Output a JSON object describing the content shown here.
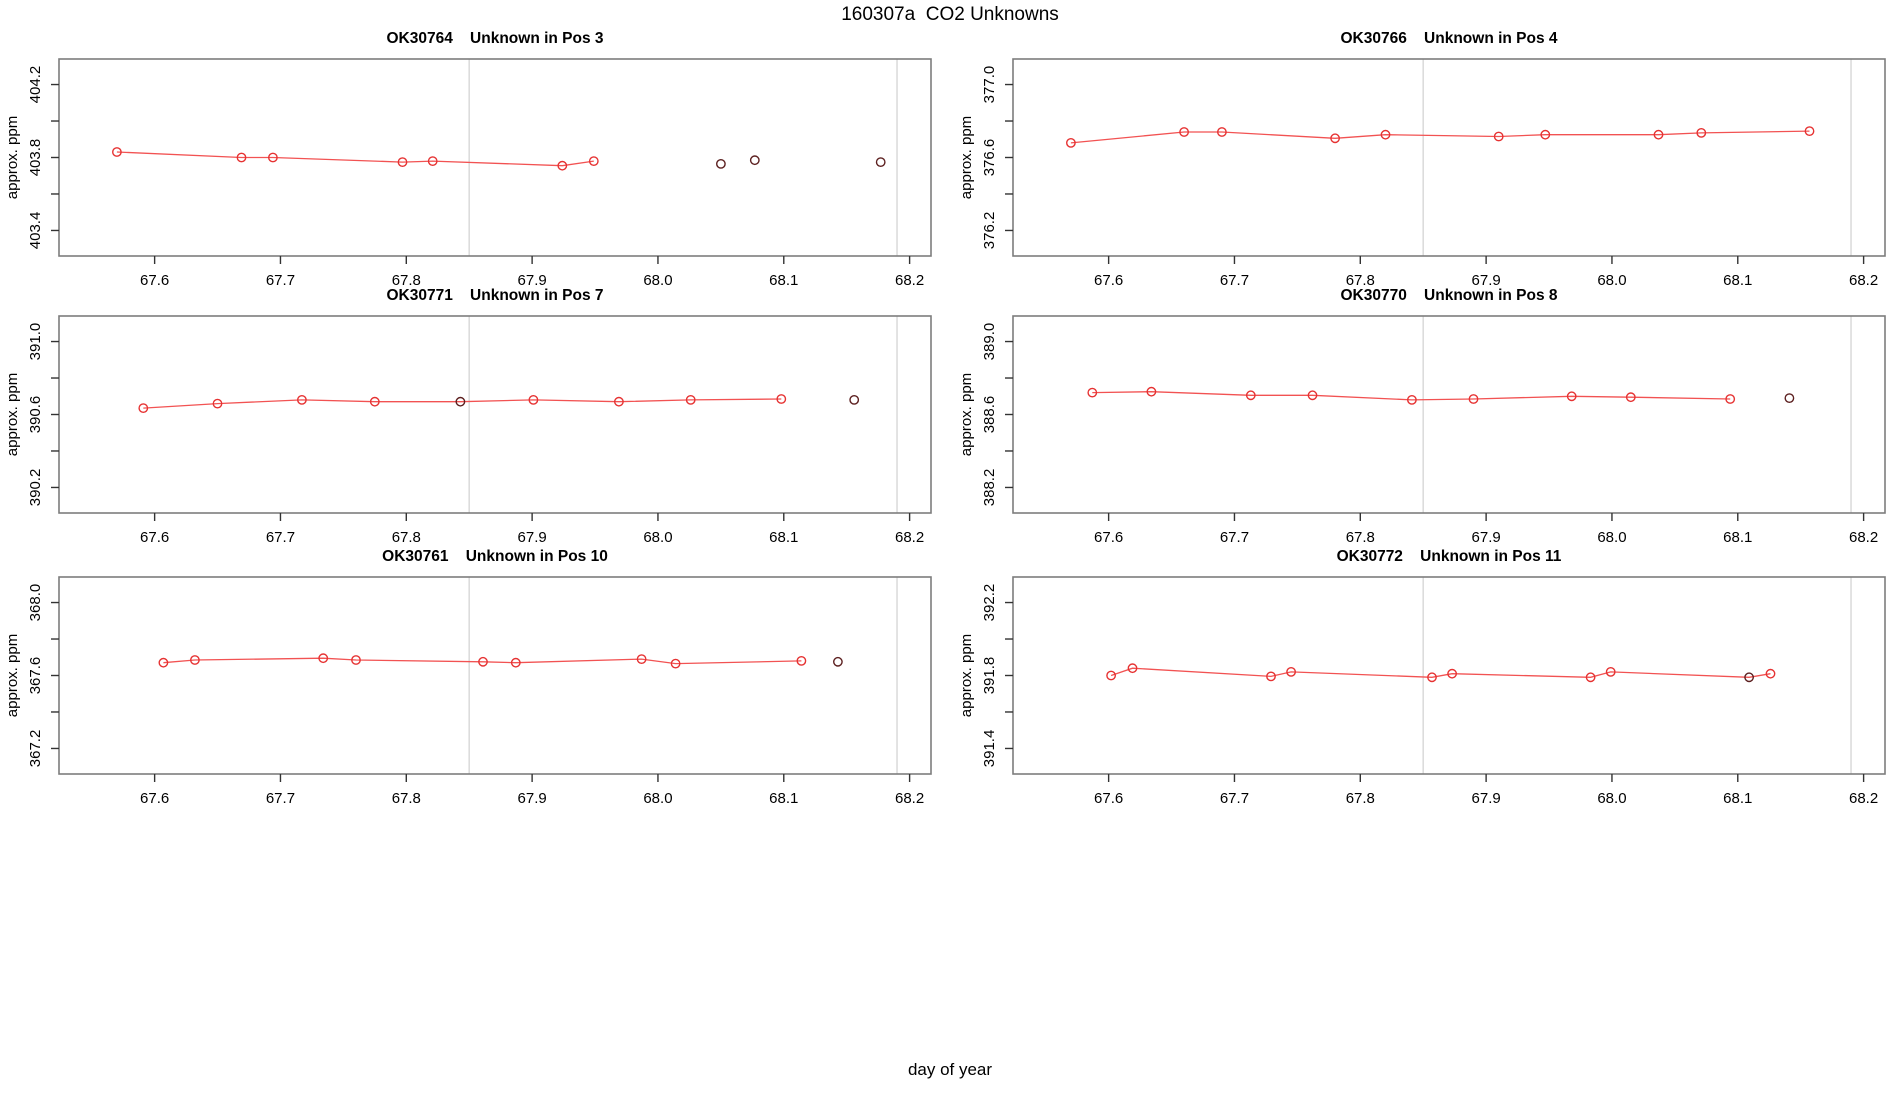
{
  "figure": {
    "main_title": "160307a  CO2 Unknowns",
    "x_axis_caption": "day of year",
    "y_axis_label": "approx. ppm"
  },
  "colors": {
    "background": "#ffffff",
    "series_line": "#f25252",
    "series_point": "#e63232",
    "flagged_point": "#5c1f1f",
    "marker_line": "#dcdcdc",
    "box_border": "#7d7d7d",
    "tick_mark": "#333333",
    "label_text": "#000000"
  },
  "axes": {
    "xlim": [
      67.524,
      68.217
    ],
    "x_tick_values": [
      67.6,
      67.7,
      67.8,
      67.9,
      68.0,
      68.1,
      68.2
    ],
    "x_tick_labels": [
      "67.6",
      "67.7",
      "67.8",
      "67.9",
      "68.0",
      "68.1",
      "68.2"
    ],
    "marker_lines": [
      67.85,
      68.19
    ]
  },
  "chart_data": [
    {
      "type": "line",
      "sample_id": "OK30764",
      "position_label": "Unknown in Pos 3",
      "title": "OK30764    Unknown in Pos 3",
      "ylabel": "approx. ppm",
      "xlabel": "day of year",
      "ylim": [
        403.26,
        404.34
      ],
      "y_ticks_labeled": {
        "values": [
          403.4,
          403.8,
          404.2
        ],
        "labels": [
          "403.4",
          "403.8",
          "404.2"
        ]
      },
      "y_ticks_minor": [
        403.6,
        404.0
      ],
      "points": [
        {
          "day": 67.57,
          "ppm": 403.83,
          "dark": false,
          "in_line": true
        },
        {
          "day": 67.669,
          "ppm": 403.8,
          "dark": false,
          "in_line": true
        },
        {
          "day": 67.694,
          "ppm": 403.8,
          "dark": false,
          "in_line": true
        },
        {
          "day": 67.797,
          "ppm": 403.775,
          "dark": false,
          "in_line": true
        },
        {
          "day": 67.821,
          "ppm": 403.78,
          "dark": false,
          "in_line": true
        },
        {
          "day": 67.924,
          "ppm": 403.755,
          "dark": false,
          "in_line": true
        },
        {
          "day": 67.949,
          "ppm": 403.78,
          "dark": false,
          "in_line": true
        },
        {
          "day": 68.05,
          "ppm": 403.765,
          "dark": true,
          "in_line": false
        },
        {
          "day": 68.077,
          "ppm": 403.785,
          "dark": true,
          "in_line": false
        },
        {
          "day": 68.177,
          "ppm": 403.775,
          "dark": true,
          "in_line": false
        }
      ]
    },
    {
      "type": "line",
      "sample_id": "OK30766",
      "position_label": "Unknown in Pos 4",
      "title": "OK30766    Unknown in Pos 4",
      "ylabel": "approx. ppm",
      "xlabel": "day of year",
      "ylim": [
        376.06,
        377.14
      ],
      "y_ticks_labeled": {
        "values": [
          376.2,
          376.6,
          377.0
        ],
        "labels": [
          "376.2",
          "376.6",
          "377.0"
        ]
      },
      "y_ticks_minor": [
        376.4,
        376.8
      ],
      "points": [
        {
          "day": 67.57,
          "ppm": 376.68,
          "dark": false,
          "in_line": true
        },
        {
          "day": 67.66,
          "ppm": 376.74,
          "dark": false,
          "in_line": true
        },
        {
          "day": 67.69,
          "ppm": 376.74,
          "dark": false,
          "in_line": true
        },
        {
          "day": 67.78,
          "ppm": 376.705,
          "dark": false,
          "in_line": true
        },
        {
          "day": 67.82,
          "ppm": 376.725,
          "dark": false,
          "in_line": true
        },
        {
          "day": 67.91,
          "ppm": 376.715,
          "dark": false,
          "in_line": true
        },
        {
          "day": 67.947,
          "ppm": 376.725,
          "dark": false,
          "in_line": true
        },
        {
          "day": 68.037,
          "ppm": 376.725,
          "dark": false,
          "in_line": true
        },
        {
          "day": 68.071,
          "ppm": 376.735,
          "dark": false,
          "in_line": true
        },
        {
          "day": 68.157,
          "ppm": 376.745,
          "dark": false,
          "in_line": true
        }
      ]
    },
    {
      "type": "line",
      "sample_id": "OK30771",
      "position_label": "Unknown in Pos 7",
      "title": "OK30771    Unknown in Pos 7",
      "ylabel": "approx. ppm",
      "xlabel": "day of year",
      "ylim": [
        390.06,
        391.14
      ],
      "y_ticks_labeled": {
        "values": [
          390.2,
          390.6,
          391.0
        ],
        "labels": [
          "390.2",
          "390.6",
          "391.0"
        ]
      },
      "y_ticks_minor": [
        390.4,
        390.8
      ],
      "points": [
        {
          "day": 67.591,
          "ppm": 390.635,
          "dark": false,
          "in_line": true
        },
        {
          "day": 67.65,
          "ppm": 390.66,
          "dark": false,
          "in_line": true
        },
        {
          "day": 67.717,
          "ppm": 390.68,
          "dark": false,
          "in_line": true
        },
        {
          "day": 67.775,
          "ppm": 390.67,
          "dark": false,
          "in_line": true
        },
        {
          "day": 67.843,
          "ppm": 390.67,
          "dark": true,
          "in_line": true
        },
        {
          "day": 67.901,
          "ppm": 390.68,
          "dark": false,
          "in_line": true
        },
        {
          "day": 67.969,
          "ppm": 390.67,
          "dark": false,
          "in_line": true
        },
        {
          "day": 68.026,
          "ppm": 390.68,
          "dark": false,
          "in_line": true
        },
        {
          "day": 68.098,
          "ppm": 390.685,
          "dark": false,
          "in_line": true
        },
        {
          "day": 68.156,
          "ppm": 390.68,
          "dark": true,
          "in_line": false
        }
      ]
    },
    {
      "type": "line",
      "sample_id": "OK30770",
      "position_label": "Unknown in Pos 8",
      "title": "OK30770    Unknown in Pos 8",
      "ylabel": "approx. ppm",
      "xlabel": "day of year",
      "ylim": [
        388.06,
        389.14
      ],
      "y_ticks_labeled": {
        "values": [
          388.2,
          388.6,
          389.0
        ],
        "labels": [
          "388.2",
          "388.6",
          "389.0"
        ]
      },
      "y_ticks_minor": [
        388.4,
        388.8
      ],
      "points": [
        {
          "day": 67.587,
          "ppm": 388.72,
          "dark": false,
          "in_line": true
        },
        {
          "day": 67.634,
          "ppm": 388.725,
          "dark": false,
          "in_line": true
        },
        {
          "day": 67.713,
          "ppm": 388.705,
          "dark": false,
          "in_line": true
        },
        {
          "day": 67.762,
          "ppm": 388.705,
          "dark": false,
          "in_line": true
        },
        {
          "day": 67.841,
          "ppm": 388.68,
          "dark": false,
          "in_line": true
        },
        {
          "day": 67.89,
          "ppm": 388.685,
          "dark": false,
          "in_line": true
        },
        {
          "day": 67.968,
          "ppm": 388.7,
          "dark": false,
          "in_line": true
        },
        {
          "day": 68.015,
          "ppm": 388.695,
          "dark": false,
          "in_line": true
        },
        {
          "day": 68.094,
          "ppm": 388.685,
          "dark": false,
          "in_line": true
        },
        {
          "day": 68.141,
          "ppm": 388.69,
          "dark": true,
          "in_line": false
        }
      ]
    },
    {
      "type": "line",
      "sample_id": "OK30761",
      "position_label": "Unknown in Pos 10",
      "title": "OK30761    Unknown in Pos 10",
      "ylabel": "approx. ppm",
      "xlabel": "day of year",
      "ylim": [
        367.06,
        368.14
      ],
      "y_ticks_labeled": {
        "values": [
          367.2,
          367.6,
          368.0
        ],
        "labels": [
          "367.2",
          "367.6",
          "368.0"
        ]
      },
      "y_ticks_minor": [
        367.4,
        367.8
      ],
      "points": [
        {
          "day": 67.607,
          "ppm": 367.67,
          "dark": false,
          "in_line": true
        },
        {
          "day": 67.632,
          "ppm": 367.685,
          "dark": false,
          "in_line": true
        },
        {
          "day": 67.734,
          "ppm": 367.695,
          "dark": false,
          "in_line": true
        },
        {
          "day": 67.76,
          "ppm": 367.685,
          "dark": false,
          "in_line": true
        },
        {
          "day": 67.861,
          "ppm": 367.675,
          "dark": false,
          "in_line": true
        },
        {
          "day": 67.887,
          "ppm": 367.67,
          "dark": false,
          "in_line": true
        },
        {
          "day": 67.987,
          "ppm": 367.69,
          "dark": false,
          "in_line": true
        },
        {
          "day": 68.014,
          "ppm": 367.665,
          "dark": false,
          "in_line": true
        },
        {
          "day": 68.114,
          "ppm": 367.68,
          "dark": false,
          "in_line": true
        },
        {
          "day": 68.143,
          "ppm": 367.675,
          "dark": true,
          "in_line": false
        }
      ]
    },
    {
      "type": "line",
      "sample_id": "OK30772",
      "position_label": "Unknown in Pos 11",
      "title": "OK30772    Unknown in Pos 11",
      "ylabel": "approx. ppm",
      "xlabel": "day of year",
      "ylim": [
        391.26,
        392.34
      ],
      "y_ticks_labeled": {
        "values": [
          391.4,
          391.8,
          392.2
        ],
        "labels": [
          "391.4",
          "391.8",
          "392.2"
        ]
      },
      "y_ticks_minor": [
        391.6,
        392.0
      ],
      "points": [
        {
          "day": 67.602,
          "ppm": 391.8,
          "dark": false,
          "in_line": true
        },
        {
          "day": 67.619,
          "ppm": 391.84,
          "dark": false,
          "in_line": true
        },
        {
          "day": 67.729,
          "ppm": 391.795,
          "dark": false,
          "in_line": true
        },
        {
          "day": 67.745,
          "ppm": 391.82,
          "dark": false,
          "in_line": true
        },
        {
          "day": 67.857,
          "ppm": 391.79,
          "dark": false,
          "in_line": true
        },
        {
          "day": 67.873,
          "ppm": 391.81,
          "dark": false,
          "in_line": true
        },
        {
          "day": 67.983,
          "ppm": 391.79,
          "dark": false,
          "in_line": true
        },
        {
          "day": 67.999,
          "ppm": 391.82,
          "dark": false,
          "in_line": true
        },
        {
          "day": 68.109,
          "ppm": 391.79,
          "dark": true,
          "in_line": true
        },
        {
          "day": 68.126,
          "ppm": 391.81,
          "dark": false,
          "in_line": true
        }
      ]
    }
  ]
}
